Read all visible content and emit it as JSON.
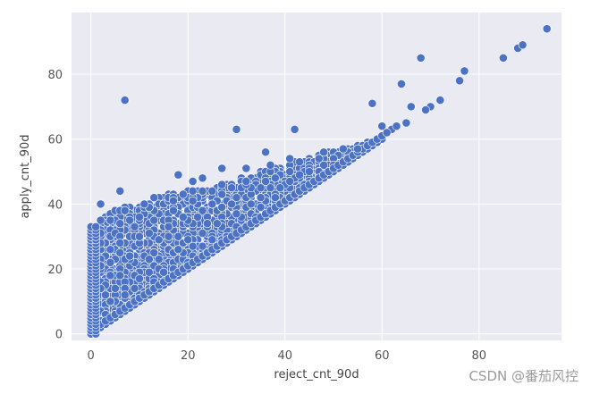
{
  "chart_data": {
    "type": "scatter",
    "title": "",
    "xlabel": "reject_cnt_90d",
    "ylabel": "apply_cnt_90d",
    "xlim": [
      -4,
      97
    ],
    "ylim": [
      -2,
      99
    ],
    "xticks": [
      0,
      20,
      40,
      60,
      80
    ],
    "yticks": [
      0,
      20,
      40,
      60,
      80
    ],
    "grid": true,
    "background": "#eaeaf2",
    "grid_color": "#ffffff",
    "point_color": "#4c72c4",
    "point_edge": "#ffffff",
    "outliers": [
      {
        "x": 7,
        "y": 72
      },
      {
        "x": 30,
        "y": 63
      },
      {
        "x": 42,
        "y": 63
      },
      {
        "x": 58,
        "y": 71
      },
      {
        "x": 64,
        "y": 77
      },
      {
        "x": 68,
        "y": 85
      },
      {
        "x": 76,
        "y": 78
      },
      {
        "x": 77,
        "y": 81
      },
      {
        "x": 85,
        "y": 85
      },
      {
        "x": 88,
        "y": 88
      },
      {
        "x": 89,
        "y": 89
      },
      {
        "x": 94,
        "y": 94
      },
      {
        "x": 66,
        "y": 70
      },
      {
        "x": 70,
        "y": 70
      },
      {
        "x": 72,
        "y": 72
      },
      {
        "x": 69,
        "y": 69
      },
      {
        "x": 62,
        "y": 63
      },
      {
        "x": 60,
        "y": 64
      },
      {
        "x": 65,
        "y": 65
      },
      {
        "x": 63,
        "y": 64
      },
      {
        "x": 61,
        "y": 62
      },
      {
        "x": 48,
        "y": 56
      },
      {
        "x": 52,
        "y": 57
      },
      {
        "x": 55,
        "y": 57
      },
      {
        "x": 36,
        "y": 56
      },
      {
        "x": 41,
        "y": 54
      },
      {
        "x": 37,
        "y": 52
      },
      {
        "x": 18,
        "y": 49
      },
      {
        "x": 23,
        "y": 48
      },
      {
        "x": 21,
        "y": 47
      },
      {
        "x": 32,
        "y": 51
      },
      {
        "x": 27,
        "y": 51
      },
      {
        "x": 6,
        "y": 44
      },
      {
        "x": 2,
        "y": 40
      },
      {
        "x": 11,
        "y": 40
      }
    ],
    "dense_region": {
      "x_max": 60,
      "lower_bound": "y = x",
      "upper_bound_points": [
        [
          0,
          33
        ],
        [
          5,
          38
        ],
        [
          10,
          40
        ],
        [
          15,
          43
        ],
        [
          20,
          44
        ],
        [
          25,
          45
        ],
        [
          30,
          47
        ],
        [
          35,
          50
        ],
        [
          40,
          52
        ],
        [
          45,
          54
        ],
        [
          50,
          56
        ],
        [
          55,
          58
        ],
        [
          60,
          60
        ]
      ]
    }
  },
  "watermark": "CSDN @番茄风控"
}
